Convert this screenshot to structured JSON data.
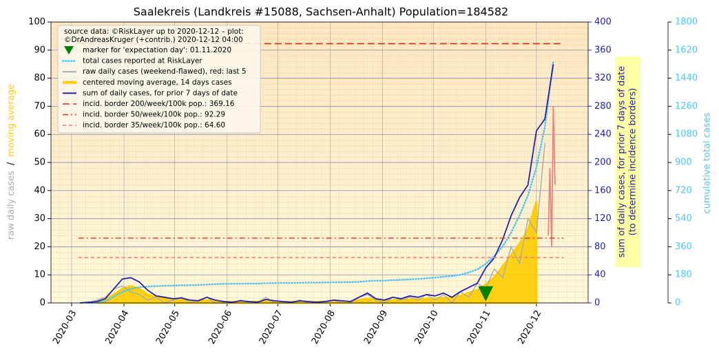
{
  "chart_data": {
    "type": "line",
    "title": "Saalekreis (Landkreis #15088, Sachsen-Anhalt) Population=184582",
    "source_lines": [
      "source data: ©RiskLayer up to 2020-12-12 – plot:",
      "©DrAndreasKruger (+contrib.) 2020-12-12 04:00"
    ],
    "ylabel_parts": [
      {
        "text": "raw daily cases",
        "color": "#aaaaaa"
      },
      {
        "text": "/",
        "color": "#000000"
      },
      {
        "text": "moving average",
        "color": "#ffcc00"
      }
    ],
    "y2label": [
      "sum of daily cases, for prior 7 days of date",
      "(to determine incidence borders)"
    ],
    "y3label": "cumulative total cases",
    "xlim": [
      48.8,
      366.6
    ],
    "xticks": [
      {
        "value": 61,
        "label": "2020-03"
      },
      {
        "value": 92,
        "label": "2020-04"
      },
      {
        "value": 122,
        "label": "2020-05"
      },
      {
        "value": 153,
        "label": "2020-06"
      },
      {
        "value": 183,
        "label": "2020-07"
      },
      {
        "value": 214,
        "label": "2020-08"
      },
      {
        "value": 245,
        "label": "2020-09"
      },
      {
        "value": 275,
        "label": "2020-10"
      },
      {
        "value": 306,
        "label": "2020-11"
      },
      {
        "value": 336,
        "label": "2020-12"
      }
    ],
    "ylim": [
      0,
      100
    ],
    "yticks": [
      0,
      10,
      20,
      30,
      40,
      50,
      60,
      70,
      80,
      90,
      100
    ],
    "y2lim": [
      0,
      400
    ],
    "y2ticks": [
      0,
      40,
      80,
      120,
      160,
      200,
      240,
      280,
      320,
      360,
      400
    ],
    "y2color": "#2222aa",
    "y3lim": [
      0,
      1800
    ],
    "y3ticks": [
      0,
      180,
      360,
      540,
      720,
      900,
      1080,
      1260,
      1440,
      1620,
      1800
    ],
    "y3color": "#4fc3f7",
    "grid": true,
    "x": [
      61,
      66,
      71,
      76,
      81,
      86,
      91,
      96,
      101,
      106,
      111,
      116,
      121,
      126,
      131,
      136,
      141,
      146,
      151,
      156,
      161,
      166,
      171,
      176,
      181,
      186,
      191,
      196,
      201,
      206,
      211,
      216,
      221,
      226,
      231,
      236,
      241,
      246,
      251,
      256,
      261,
      266,
      271,
      276,
      281,
      286,
      291,
      296,
      301,
      306,
      311,
      316,
      321,
      326,
      331,
      336,
      341,
      346
    ],
    "marker": {
      "name": "marker for 'expectation day': 01.11.2020",
      "x": 306,
      "value": 3,
      "color": "#008000"
    },
    "series": [
      {
        "name": "total cases reported at RiskLayer",
        "color": "#4fc3f7",
        "axis": "y3",
        "style": "dotted",
        "values": [
          null,
          null,
          0,
          2,
          10,
          40,
          70,
          90,
          100,
          105,
          108,
          110,
          111,
          113,
          114,
          115,
          118,
          120,
          122,
          122,
          123,
          124,
          124,
          126,
          127,
          128,
          128,
          129,
          130,
          130,
          131,
          132,
          133,
          133,
          135,
          140,
          142,
          143,
          146,
          148,
          151,
          154,
          158,
          162,
          168,
          172,
          180,
          195,
          215,
          250,
          300,
          360,
          450,
          560,
          690,
          870,
          1130,
          1550
        ]
      },
      {
        "name": "raw daily cases (weekend-flawed), red: last 5",
        "color": "#aaaaaa",
        "axis": "y",
        "style": "solid",
        "values": [
          null,
          0,
          0,
          1,
          2,
          5,
          6,
          4,
          3,
          1,
          2,
          0,
          1,
          2,
          0,
          1,
          2,
          0,
          0,
          0,
          1,
          0,
          0,
          2,
          0,
          0,
          0,
          1,
          0,
          0,
          0,
          1,
          0,
          0,
          2,
          3,
          1,
          0,
          2,
          1,
          2,
          1,
          3,
          1,
          3,
          0,
          4,
          2,
          7,
          5,
          12,
          9,
          20,
          14,
          30,
          25,
          57,
          null
        ]
      },
      {
        "name": "centered moving average, 14 days cases",
        "color": "#ffcc00",
        "axis": "y",
        "style": "area",
        "values": [
          null,
          null,
          null,
          0.3,
          1,
          3,
          5,
          6,
          5,
          3,
          2,
          1.5,
          1.2,
          1,
          0.8,
          0.7,
          0.9,
          0.7,
          0.4,
          0.3,
          0.4,
          0.3,
          0.4,
          0.6,
          0.5,
          0.3,
          0.3,
          0.4,
          0.3,
          0.3,
          0.4,
          0.5,
          0.4,
          0.5,
          1,
          1.5,
          1.1,
          0.8,
          1,
          1,
          1.2,
          1.3,
          1.5,
          1.6,
          1.8,
          1.8,
          2.5,
          3.5,
          4.5,
          6.5,
          9,
          13,
          17,
          21,
          26,
          36,
          null,
          null
        ]
      },
      {
        "name": "sum of daily cases, for prior 7 days of date",
        "color": "#2222aa",
        "axis": "y2",
        "style": "solid",
        "values": [
          null,
          0,
          1,
          2,
          6,
          20,
          34,
          36,
          30,
          18,
          10,
          8,
          6,
          7,
          4,
          3,
          8,
          4,
          2,
          1,
          3,
          2,
          1,
          5,
          3,
          2,
          1,
          3,
          2,
          1,
          2,
          4,
          3,
          2,
          8,
          14,
          6,
          4,
          8,
          6,
          10,
          8,
          12,
          10,
          14,
          8,
          16,
          22,
          28,
          50,
          64,
          90,
          124,
          150,
          168,
          245,
          262,
          340
        ]
      }
    ],
    "last5": {
      "x": [
        343,
        344,
        345,
        346,
        347
      ],
      "values": [
        24,
        48,
        20,
        70,
        42
      ],
      "color": "#f08080"
    },
    "hlines": [
      {
        "name": "incid. border 200/week/100k pop.: 369.16",
        "value": 369.16,
        "axis": "y2",
        "color": "#d62728",
        "dash": "10 5",
        "xrange": [
          65,
          352
        ]
      },
      {
        "name": "incid. border 50/week/100k pop.: 92.29",
        "value": 92.29,
        "axis": "y2",
        "color": "#e04030",
        "dash": "8 4 2 4",
        "xrange": [
          65,
          352
        ]
      },
      {
        "name": "incid. border 35/week/100k pop.: 64.60",
        "value": 64.6,
        "axis": "y2",
        "color": "#ff7f7f",
        "dash": "5 4",
        "xrange": [
          65,
          352
        ]
      }
    ]
  }
}
